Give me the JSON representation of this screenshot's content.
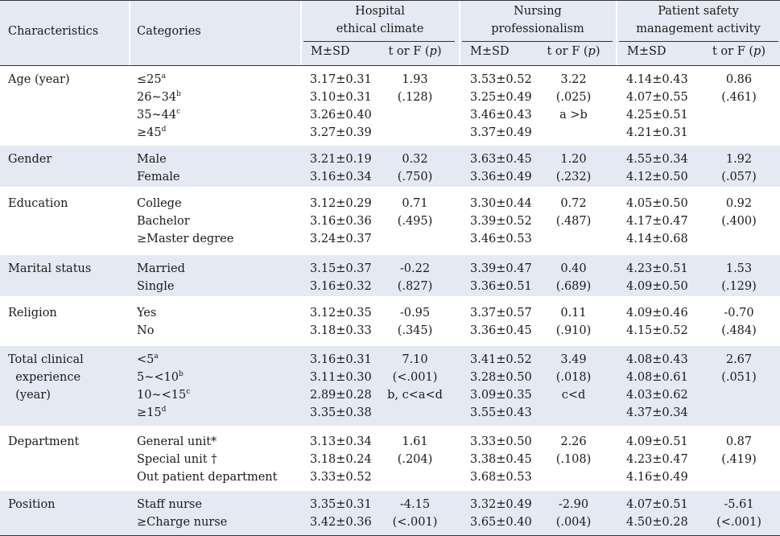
{
  "header": {
    "characteristics": "Characteristics",
    "categories": "Categories",
    "hospital_line1": "Hospital",
    "hospital_line2": "ethical climate",
    "nursing_line1": "Nursing",
    "nursing_line2": "professionalism",
    "patient_line1": "Patient safety",
    "patient_line2": "management activity",
    "msd": "M±SD",
    "t_or_f": "t or F (p)"
  },
  "rows": [
    {
      "characteristic": "Age (year)",
      "categories": [
        [
          "≤25",
          "a"
        ],
        [
          "26~34",
          "b"
        ],
        [
          "35~44",
          "c"
        ],
        [
          "≥45",
          "d"
        ]
      ],
      "hospital_msd": [
        "3.17±0.31",
        "3.10±0.31",
        "3.26±0.40",
        "3.27±0.39"
      ],
      "hospital_stat": [
        "1.93",
        "(.128)"
      ],
      "nursing_msd": [
        "3.53±0.52",
        "3.25±0.49",
        "3.46±0.43",
        "3.37±0.49"
      ],
      "nursing_stat": [
        "3.22",
        "(.025)",
        "a >b"
      ],
      "patient_msd": [
        "4.14±0.43",
        "4.07±0.55",
        "4.25±0.51",
        "4.21±0.31"
      ],
      "patient_stat": [
        "0.86",
        "(.461)"
      ]
    },
    {
      "characteristic": "Gender",
      "categories": [
        [
          "Male",
          ""
        ],
        [
          "Female",
          ""
        ]
      ],
      "hospital_msd": [
        "3.21±0.19",
        "3.16±0.34"
      ],
      "hospital_stat": [
        "0.32",
        "(.750)"
      ],
      "nursing_msd": [
        "3.63±0.45",
        "3.36±0.49"
      ],
      "nursing_stat": [
        "1.20",
        "(.232)"
      ],
      "patient_msd": [
        "4.55±0.34",
        "4.12±0.50"
      ],
      "patient_stat": [
        "1.92",
        "(.057)"
      ]
    },
    {
      "characteristic": "Education",
      "categories": [
        [
          "College",
          ""
        ],
        [
          "Bachelor",
          ""
        ],
        [
          "≥Master degree",
          ""
        ]
      ],
      "hospital_msd": [
        "3.12±0.29",
        "3.16±0.36",
        "3.24±0.37"
      ],
      "hospital_stat": [
        "0.71",
        "(.495)"
      ],
      "nursing_msd": [
        "3.30±0.44",
        "3.39±0.52",
        "3.46±0.53"
      ],
      "nursing_stat": [
        "0.72",
        "(.487)"
      ],
      "patient_msd": [
        "4.05±0.50",
        "4.17±0.47",
        "4.14±0.68"
      ],
      "patient_stat": [
        "0.92",
        "(.400)"
      ]
    },
    {
      "characteristic": "Marital status",
      "categories": [
        [
          "Married",
          ""
        ],
        [
          "Single",
          ""
        ]
      ],
      "hospital_msd": [
        "3.15±0.37",
        "3.16±0.32"
      ],
      "hospital_stat": [
        "-0.22",
        "(.827)"
      ],
      "nursing_msd": [
        "3.39±0.47",
        "3.36±0.51"
      ],
      "nursing_stat": [
        "0.40",
        "(.689)"
      ],
      "patient_msd": [
        "4.23±0.51",
        "4.09±0.50"
      ],
      "patient_stat": [
        "1.53",
        "(.129)"
      ]
    },
    {
      "characteristic": "Religion",
      "categories": [
        [
          "Yes",
          ""
        ],
        [
          "No",
          ""
        ]
      ],
      "hospital_msd": [
        "3.12±0.35",
        "3.18±0.33"
      ],
      "hospital_stat": [
        "-0.95",
        "(.345)"
      ],
      "nursing_msd": [
        "3.37±0.57",
        "3.36±0.45"
      ],
      "nursing_stat": [
        "0.11",
        "(.910)"
      ],
      "patient_msd": [
        "4.09±0.46",
        "4.15±0.52"
      ],
      "patient_stat": [
        "-0.70",
        "(.484)"
      ]
    },
    {
      "characteristic": "Total clinical\n experience\n (year)",
      "categories": [
        [
          "<5",
          "a"
        ],
        [
          "5~<10",
          "b"
        ],
        [
          "10~<15",
          "c"
        ],
        [
          "≥15",
          "d"
        ]
      ],
      "hospital_msd": [
        "3.16±0.31",
        "3.11±0.30",
        "2.89±0.28",
        "3.35±0.38"
      ],
      "hospital_stat": [
        "7.10",
        "(<.001)",
        "b, c<a<d"
      ],
      "nursing_msd": [
        "3.41±0.52",
        "3.28±0.50",
        "3.09±0.35",
        "3.55±0.43"
      ],
      "nursing_stat": [
        "3.49",
        "(.018)",
        "c<d"
      ],
      "patient_msd": [
        "4.08±0.43",
        "4.08±0.61",
        "4.03±0.62",
        "4.37±0.34"
      ],
      "patient_stat": [
        "2.67",
        "(.051)"
      ]
    },
    {
      "characteristic": "Department",
      "categories": [
        [
          "General unit*",
          ""
        ],
        [
          "Special unit †",
          ""
        ],
        [
          "Out patient department",
          ""
        ]
      ],
      "hospital_msd": [
        "3.13±0.34",
        "3.18±0.24",
        "3.33±0.52"
      ],
      "hospital_stat": [
        "1.61",
        "(.204)"
      ],
      "nursing_msd": [
        "3.33±0.50",
        "3.38±0.45",
        "3.68±0.53"
      ],
      "nursing_stat": [
        "2.26",
        "(.108)"
      ],
      "patient_msd": [
        "4.09±0.51",
        "4.23±0.47",
        "4.16±0.49"
      ],
      "patient_stat": [
        "0.87",
        "(.419)"
      ]
    },
    {
      "characteristic": "Position",
      "categories": [
        [
          "Staff nurse",
          ""
        ],
        [
          "≥Charge nurse",
          ""
        ]
      ],
      "hospital_msd": [
        "3.35±0.31",
        "3.42±0.36"
      ],
      "hospital_stat": [
        "-4.15",
        "(<.001)"
      ],
      "nursing_msd": [
        "3.32±0.49",
        "3.65±0.40"
      ],
      "nursing_stat": [
        "-2.90",
        "(.004)"
      ],
      "patient_msd": [
        "4.07±0.51",
        "4.50±0.28"
      ],
      "patient_stat": [
        "-5.61",
        "(<.001)"
      ]
    }
  ]
}
